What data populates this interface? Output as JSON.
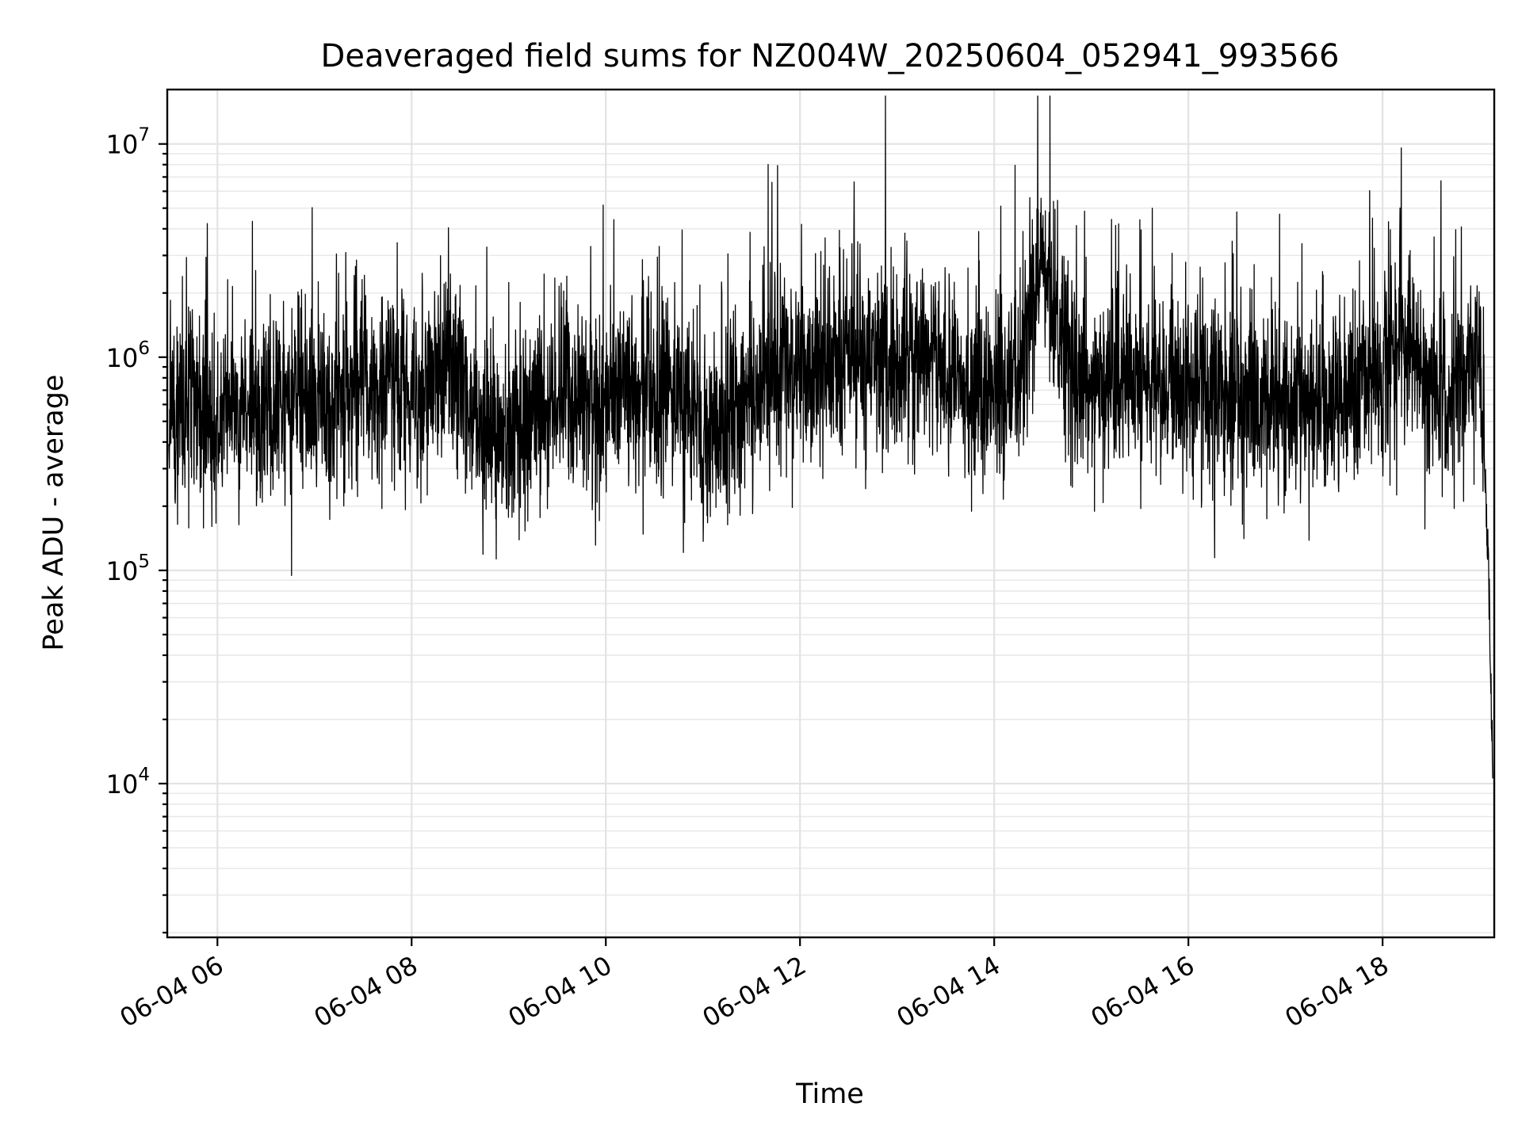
{
  "chart_data": {
    "type": "line",
    "title": "Deaveraged field sums for NZ004W_20250604_052941_993566",
    "xlabel": "Time",
    "ylabel": "Peak ADU - average",
    "yscale": "log",
    "grid": "on",
    "legend": "none",
    "xlim": [
      "2025-06-04 05:29",
      "2025-06-04 19:09"
    ],
    "ylim": [
      1900,
      18000000
    ],
    "x_ticks": [
      {
        "value": "2025-06-04 06:00",
        "label": "06-04 06"
      },
      {
        "value": "2025-06-04 08:00",
        "label": "06-04 08"
      },
      {
        "value": "2025-06-04 10:00",
        "label": "06-04 10"
      },
      {
        "value": "2025-06-04 12:00",
        "label": "06-04 12"
      },
      {
        "value": "2025-06-04 14:00",
        "label": "06-04 14"
      },
      {
        "value": "2025-06-04 16:00",
        "label": "06-04 16"
      },
      {
        "value": "2025-06-04 18:00",
        "label": "06-04 18"
      }
    ],
    "y_ticks": [
      {
        "value": 10000,
        "base": "10",
        "exp": "4"
      },
      {
        "value": 100000,
        "base": "10",
        "exp": "5"
      },
      {
        "value": 1000000,
        "base": "10",
        "exp": "6"
      },
      {
        "value": 10000000,
        "base": "10",
        "exp": "7"
      }
    ],
    "series": [
      {
        "color": "#000000",
        "x": [
          "2025-06-04 05:30",
          "2025-06-04 05:45",
          "2025-06-04 06:00",
          "2025-06-04 06:15",
          "2025-06-04 06:30",
          "2025-06-04 06:45",
          "2025-06-04 07:00",
          "2025-06-04 07:15",
          "2025-06-04 07:30",
          "2025-06-04 07:45",
          "2025-06-04 08:00",
          "2025-06-04 08:15",
          "2025-06-04 08:30",
          "2025-06-04 08:45",
          "2025-06-04 09:00",
          "2025-06-04 09:15",
          "2025-06-04 09:30",
          "2025-06-04 09:45",
          "2025-06-04 10:00",
          "2025-06-04 10:15",
          "2025-06-04 10:30",
          "2025-06-04 10:45",
          "2025-06-04 11:00",
          "2025-06-04 11:15",
          "2025-06-04 11:30",
          "2025-06-04 11:45",
          "2025-06-04 12:00",
          "2025-06-04 12:15",
          "2025-06-04 12:30",
          "2025-06-04 12:45",
          "2025-06-04 13:00",
          "2025-06-04 13:15",
          "2025-06-04 13:30",
          "2025-06-04 13:45",
          "2025-06-04 14:00",
          "2025-06-04 14:15",
          "2025-06-04 14:30",
          "2025-06-04 14:45",
          "2025-06-04 15:00",
          "2025-06-04 15:15",
          "2025-06-04 15:30",
          "2025-06-04 15:45",
          "2025-06-04 16:00",
          "2025-06-04 16:15",
          "2025-06-04 16:30",
          "2025-06-04 16:45",
          "2025-06-04 17:00",
          "2025-06-04 17:15",
          "2025-06-04 17:30",
          "2025-06-04 17:45",
          "2025-06-04 18:00",
          "2025-06-04 18:15",
          "2025-06-04 18:30",
          "2025-06-04 18:45",
          "2025-06-04 18:55",
          "2025-06-04 19:00",
          "2025-06-04 19:03",
          "2025-06-04 19:05",
          "2025-06-04 19:07",
          "2025-06-04 19:08"
        ],
        "y": [
          500000,
          600000,
          450000,
          550000,
          500000,
          700000,
          600000,
          550000,
          800000,
          700000,
          600000,
          900000,
          750000,
          450000,
          400000,
          550000,
          700000,
          650000,
          600000,
          700000,
          650000,
          600000,
          550000,
          500000,
          600000,
          1000000,
          800000,
          900000,
          1000000,
          950000,
          900000,
          1100000,
          800000,
          700000,
          650000,
          800000,
          2600000,
          900000,
          700000,
          750000,
          700000,
          800000,
          700000,
          700000,
          650000,
          650000,
          600000,
          550000,
          600000,
          700000,
          900000,
          1100000,
          750000,
          700000,
          900000,
          1000000,
          300000,
          120000,
          30000,
          12000
        ]
      }
    ]
  }
}
